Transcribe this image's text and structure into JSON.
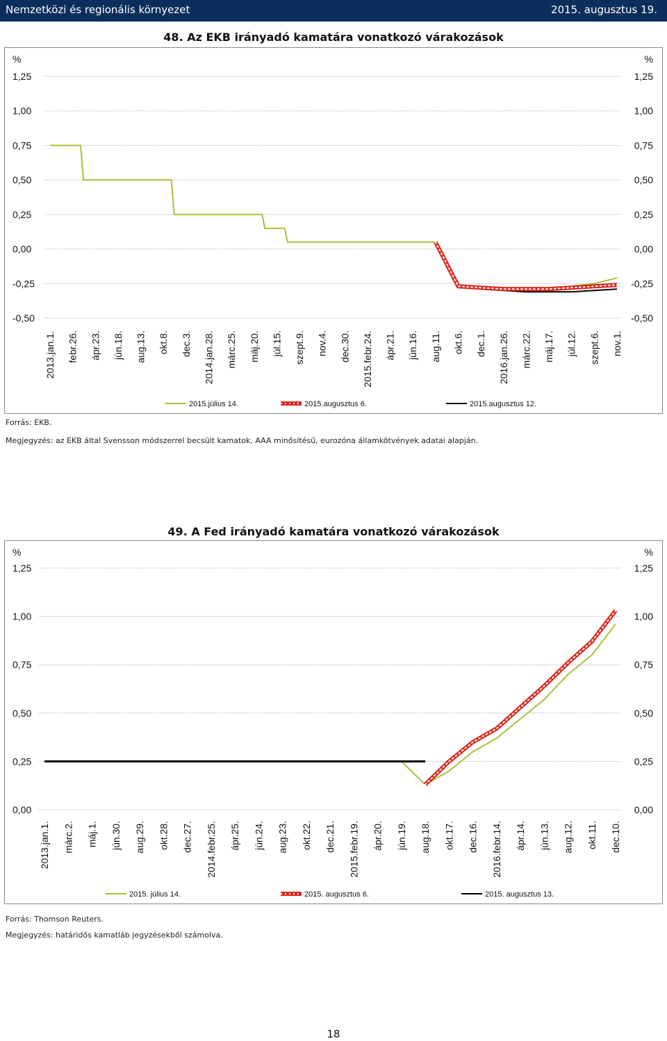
{
  "header": {
    "section": "Nemzetközi és regionális környezet",
    "date": "2015. augusztus 19."
  },
  "page_number": "18",
  "charts": [
    {
      "title": "48. Az EKB irányadó kamatára vonatkozó várakozások",
      "unit_left": "%",
      "unit_right": "%",
      "yticks": [
        "1,25",
        "1,00",
        "0,75",
        "0,50",
        "0,25",
        "0,00",
        "-0,25",
        "-0,50"
      ],
      "source": "Forrás: EKB.",
      "note": "Megjegyzés: az EKB által Svensson módszerrel becsült kamatok, AAA minősítésű, eurozóna államkötvények adatai alapján."
    },
    {
      "title": "49. A Fed irányadó kamatára vonatkozó várakozások",
      "unit_left": "%",
      "unit_right": "%",
      "yticks": [
        "1,25",
        "1,00",
        "0,75",
        "0,50",
        "0,25",
        "0,00"
      ],
      "source": "Forrás: Thomson Reuters.",
      "note": "Megjegyzés: határidős kamatláb jegyzésekből számolva."
    }
  ],
  "colors": {
    "green": "#a3c538",
    "red": "#d9261c",
    "black": "#000000",
    "header_bg": "#0b2e5c"
  },
  "chart_data": [
    {
      "type": "line",
      "title": "48. Az EKB irányadó kamatára vonatkozó várakozások",
      "ylim": [
        -0.5,
        1.25
      ],
      "categories": [
        "2013.jan.1.",
        "febr.26.",
        "ápr.23.",
        "jún.18.",
        "aug.13.",
        "okt.8.",
        "dec.3.",
        "2014.jan.28.",
        "márc.25.",
        "máj.20.",
        "júl.15.",
        "szept.9.",
        "nov.4.",
        "dec.30.",
        "2015.febr.24.",
        "ápr.21.",
        "jún.16.",
        "aug.11.",
        "okt.6.",
        "dec.1.",
        "2016.jan.26.",
        "márc.22.",
        "máj.17.",
        "júl.12.",
        "szept.6.",
        "nov.1."
      ],
      "grid": true,
      "legend_position": "bottom",
      "series": [
        {
          "name": "2015.július 14.",
          "color": "#a3c538",
          "style": "line",
          "x": [
            "2013.jan.1.",
            "febr.26.",
            "ápr.23.",
            "jún.18.",
            "aug.13.",
            "okt.8.",
            "dec.3.",
            "2014.jan.28.",
            "márc.25.",
            "máj.20.",
            "júl.15.",
            "szept.9.",
            "nov.4.",
            "dec.30.",
            "2015.febr.24.",
            "ápr.21.",
            "jún.16.",
            "aug.11.",
            "okt.6.",
            "dec.1.",
            "2016.jan.26.",
            "márc.22.",
            "máj.17.",
            "júl.12.",
            "szept.6.",
            "nov.1."
          ],
          "values": [
            0.75,
            0.75,
            0.5,
            0.5,
            0.5,
            0.5,
            0.25,
            0.25,
            0.25,
            0.25,
            0.15,
            0.05,
            0.05,
            0.05,
            0.05,
            0.05,
            0.05,
            0.05,
            -0.28,
            -0.28,
            -0.28,
            -0.28,
            -0.28,
            -0.27,
            -0.25,
            -0.21
          ]
        },
        {
          "name": "2015.augusztus 6.",
          "color": "#d9261c",
          "style": "dotted-thick",
          "x": [
            "aug.11.",
            "okt.6.",
            "dec.1.",
            "2016.jan.26.",
            "márc.22.",
            "máj.17.",
            "júl.12.",
            "szept.6.",
            "nov.1."
          ],
          "values": [
            0.05,
            -0.27,
            -0.28,
            -0.29,
            -0.29,
            -0.29,
            -0.28,
            -0.27,
            -0.26
          ]
        },
        {
          "name": "2015.augusztus 12.",
          "color": "#000000",
          "style": "line",
          "x": [
            "aug.11.",
            "okt.6.",
            "dec.1.",
            "2016.jan.26.",
            "márc.22.",
            "máj.17.",
            "júl.12.",
            "szept.6.",
            "nov.1."
          ],
          "values": [
            0.05,
            -0.27,
            -0.29,
            -0.3,
            -0.31,
            -0.31,
            -0.31,
            -0.3,
            -0.29
          ]
        }
      ]
    },
    {
      "type": "line",
      "title": "49. A Fed irányadó kamatára vonatkozó várakozások",
      "ylim": [
        0,
        1.25
      ],
      "categories": [
        "2013.jan.1.",
        "márc.2.",
        "máj.1.",
        "jún.30.",
        "aug.29.",
        "okt.28.",
        "dec.27.",
        "2014.febr.25.",
        "ápr.25.",
        "jún.24.",
        "aug.23.",
        "okt.22.",
        "dec.21.",
        "2015.febr.19.",
        "ápr.20.",
        "jún.19.",
        "aug.18.",
        "okt.17.",
        "dec.16.",
        "2016.febr.14.",
        "ápr.14.",
        "jún.13.",
        "aug.12.",
        "okt.11.",
        "dec.10."
      ],
      "grid": true,
      "legend_position": "bottom",
      "series": [
        {
          "name": "2015. július 14.",
          "color": "#a3c538",
          "style": "line",
          "x": [
            "2013.jan.1.",
            "márc.2.",
            "máj.1.",
            "jún.30.",
            "aug.29.",
            "okt.28.",
            "dec.27.",
            "2014.febr.25.",
            "ápr.25.",
            "jún.24.",
            "aug.23.",
            "okt.22.",
            "dec.21.",
            "2015.febr.19.",
            "ápr.20.",
            "jún.19.",
            "aug.18.",
            "okt.17.",
            "dec.16.",
            "2016.febr.14.",
            "ápr.14.",
            "jún.13.",
            "aug.12.",
            "okt.11.",
            "dec.10."
          ],
          "values": [
            0.25,
            0.25,
            0.25,
            0.25,
            0.25,
            0.25,
            0.25,
            0.25,
            0.25,
            0.25,
            0.25,
            0.25,
            0.25,
            0.25,
            0.25,
            0.25,
            0.13,
            0.2,
            0.3,
            0.37,
            0.47,
            0.57,
            0.7,
            0.8,
            0.96
          ]
        },
        {
          "name": "2015. augusztus 6.",
          "color": "#d9261c",
          "style": "dotted-thick",
          "x": [
            "aug.18.",
            "okt.17.",
            "dec.16.",
            "2016.febr.14.",
            "ápr.14.",
            "jún.13.",
            "aug.12.",
            "okt.11.",
            "dec.10."
          ],
          "values": [
            0.13,
            0.25,
            0.35,
            0.42,
            0.53,
            0.64,
            0.76,
            0.87,
            1.03
          ]
        },
        {
          "name": "2015. augusztus 13.",
          "color": "#000000",
          "style": "line",
          "x": [
            "2013.jan.1.",
            "márc.2.",
            "máj.1.",
            "jún.30.",
            "aug.29.",
            "okt.28.",
            "dec.27.",
            "2014.febr.25.",
            "ápr.25.",
            "jún.24.",
            "aug.23.",
            "okt.22.",
            "dec.21.",
            "2015.febr.19.",
            "ápr.20.",
            "jún.19.",
            "aug.18."
          ],
          "values": [
            0.25,
            0.25,
            0.25,
            0.25,
            0.25,
            0.25,
            0.25,
            0.25,
            0.25,
            0.25,
            0.25,
            0.25,
            0.25,
            0.25,
            0.25,
            0.25,
            0.25
          ]
        }
      ]
    }
  ]
}
